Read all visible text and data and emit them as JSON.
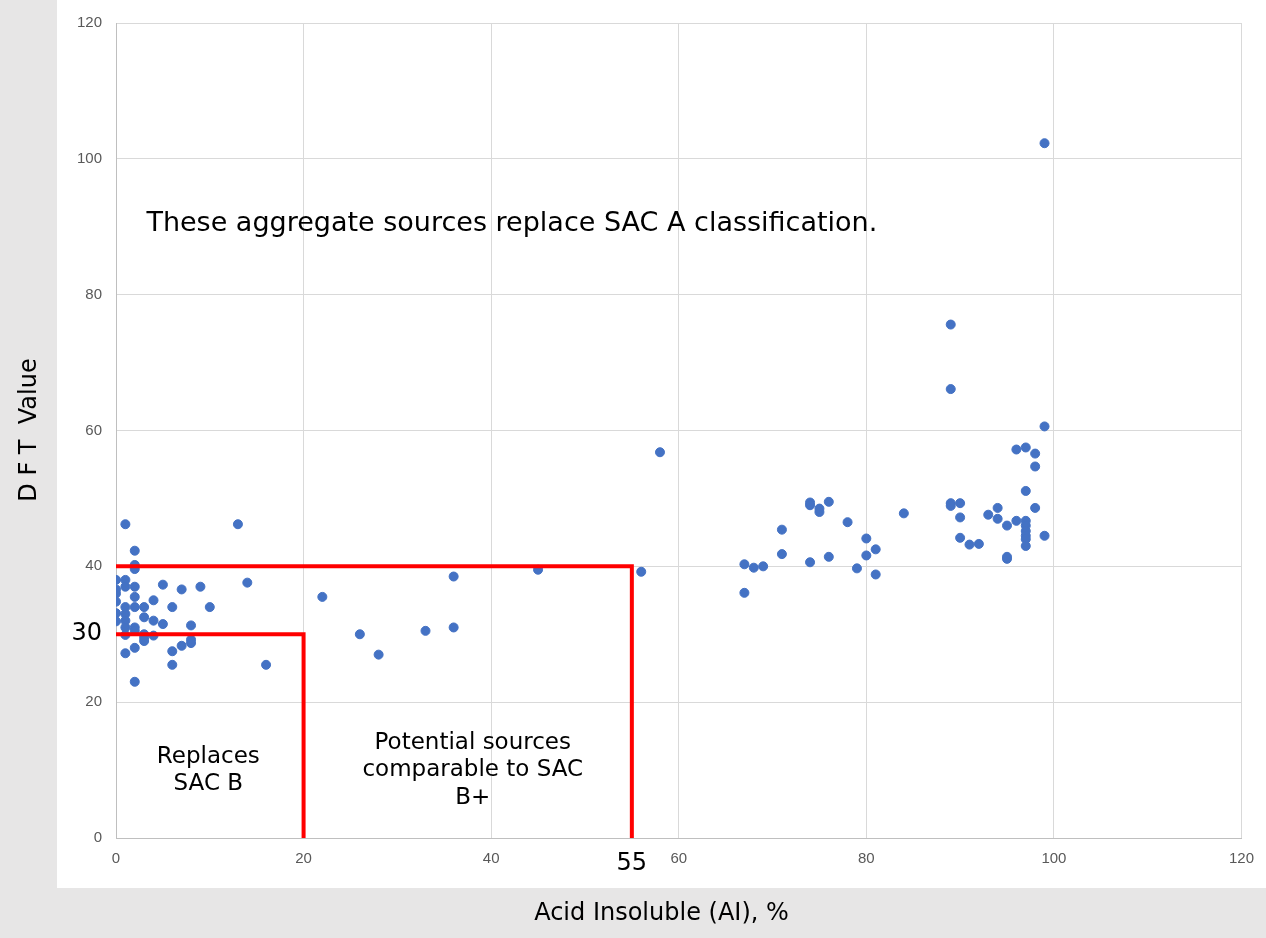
{
  "chart_data": {
    "type": "scatter",
    "xlabel": "Acid Insoluble (AI), %",
    "ylabel": "D F T  Value",
    "xlim": [
      0,
      120
    ],
    "xticks": [
      0,
      20,
      40,
      60,
      80,
      100,
      120
    ],
    "ylim": [
      0,
      120
    ],
    "yticks": [
      0,
      20,
      40,
      60,
      80,
      100,
      120
    ],
    "grid": true,
    "legend": false,
    "marker": "circle",
    "series": [
      {
        "color": "#4472c4",
        "x": [
          0,
          0,
          0,
          0,
          0,
          0,
          1,
          1,
          1,
          1,
          1,
          1,
          1,
          1,
          1,
          2,
          2,
          2,
          2,
          2,
          2,
          2,
          2,
          2,
          2,
          3,
          3,
          3,
          3,
          3,
          4,
          4,
          4,
          5,
          5,
          6,
          6,
          6,
          7,
          7,
          8,
          8,
          8,
          9,
          10,
          13,
          14,
          16,
          22,
          26,
          28,
          33,
          36,
          36,
          45,
          56,
          58,
          67,
          67,
          68,
          69,
          71,
          71,
          74,
          74,
          74,
          75,
          75,
          76,
          76,
          78,
          79,
          80,
          80,
          81,
          81,
          84,
          89,
          89,
          89,
          89,
          90,
          90,
          90,
          91,
          92,
          93,
          94,
          94,
          95,
          95,
          95,
          96,
          96,
          97,
          97,
          97,
          97,
          97,
          97,
          97,
          97,
          98,
          98,
          98,
          99,
          99,
          99
        ],
        "values": [
          38,
          36.6,
          36,
          34.8,
          33.1,
          31.9,
          46.2,
          38,
          37,
          34,
          33,
          32,
          31,
          29.9,
          27.2,
          42.3,
          39.6,
          37,
          35.5,
          34,
          31,
          30.5,
          28,
          23,
          40.2,
          34,
          32.5,
          30,
          29.5,
          29,
          35,
          32,
          29.8,
          37.3,
          31.5,
          34,
          27.5,
          25.5,
          36.6,
          28.3,
          31.3,
          29.2,
          28.7,
          37,
          34,
          46.2,
          37.6,
          25.5,
          35.5,
          30,
          27,
          30.5,
          38.5,
          31,
          39.5,
          39.2,
          56.8,
          40.3,
          36.1,
          39.8,
          40,
          45.4,
          41.8,
          49.4,
          49,
          40.6,
          48.5,
          48,
          49.5,
          41.4,
          46.5,
          39.7,
          44.1,
          41.6,
          42.5,
          38.8,
          47.8,
          75.6,
          66.1,
          49.3,
          48.9,
          49.3,
          47.2,
          44.2,
          43.2,
          43.3,
          47.6,
          48.6,
          47,
          46,
          41.4,
          41.1,
          57.2,
          46.7,
          57.5,
          51.1,
          46.7,
          46,
          45.2,
          44.5,
          44,
          43,
          56.6,
          54.7,
          48.6,
          60.6,
          44.5,
          102.3
        ]
      },
      {
        "type": "line",
        "marker": "none",
        "color": "#ff0000",
        "x": [
          0,
          20,
          20
        ],
        "values": [
          30,
          30,
          0
        ]
      },
      {
        "type": "line",
        "marker": "none",
        "color": "#ff0000",
        "x": [
          0,
          55,
          55
        ],
        "values": [
          40,
          40,
          0
        ]
      }
    ],
    "annotations": [
      "These aggregate sources replace SAC A classification.",
      "Replaces SAC B",
      "Potential sources comparable to SAC B+",
      {
        "text": "30",
        "x": 0,
        "y": 30
      },
      {
        "text": "55",
        "x": 55,
        "y": 0
      }
    ]
  }
}
